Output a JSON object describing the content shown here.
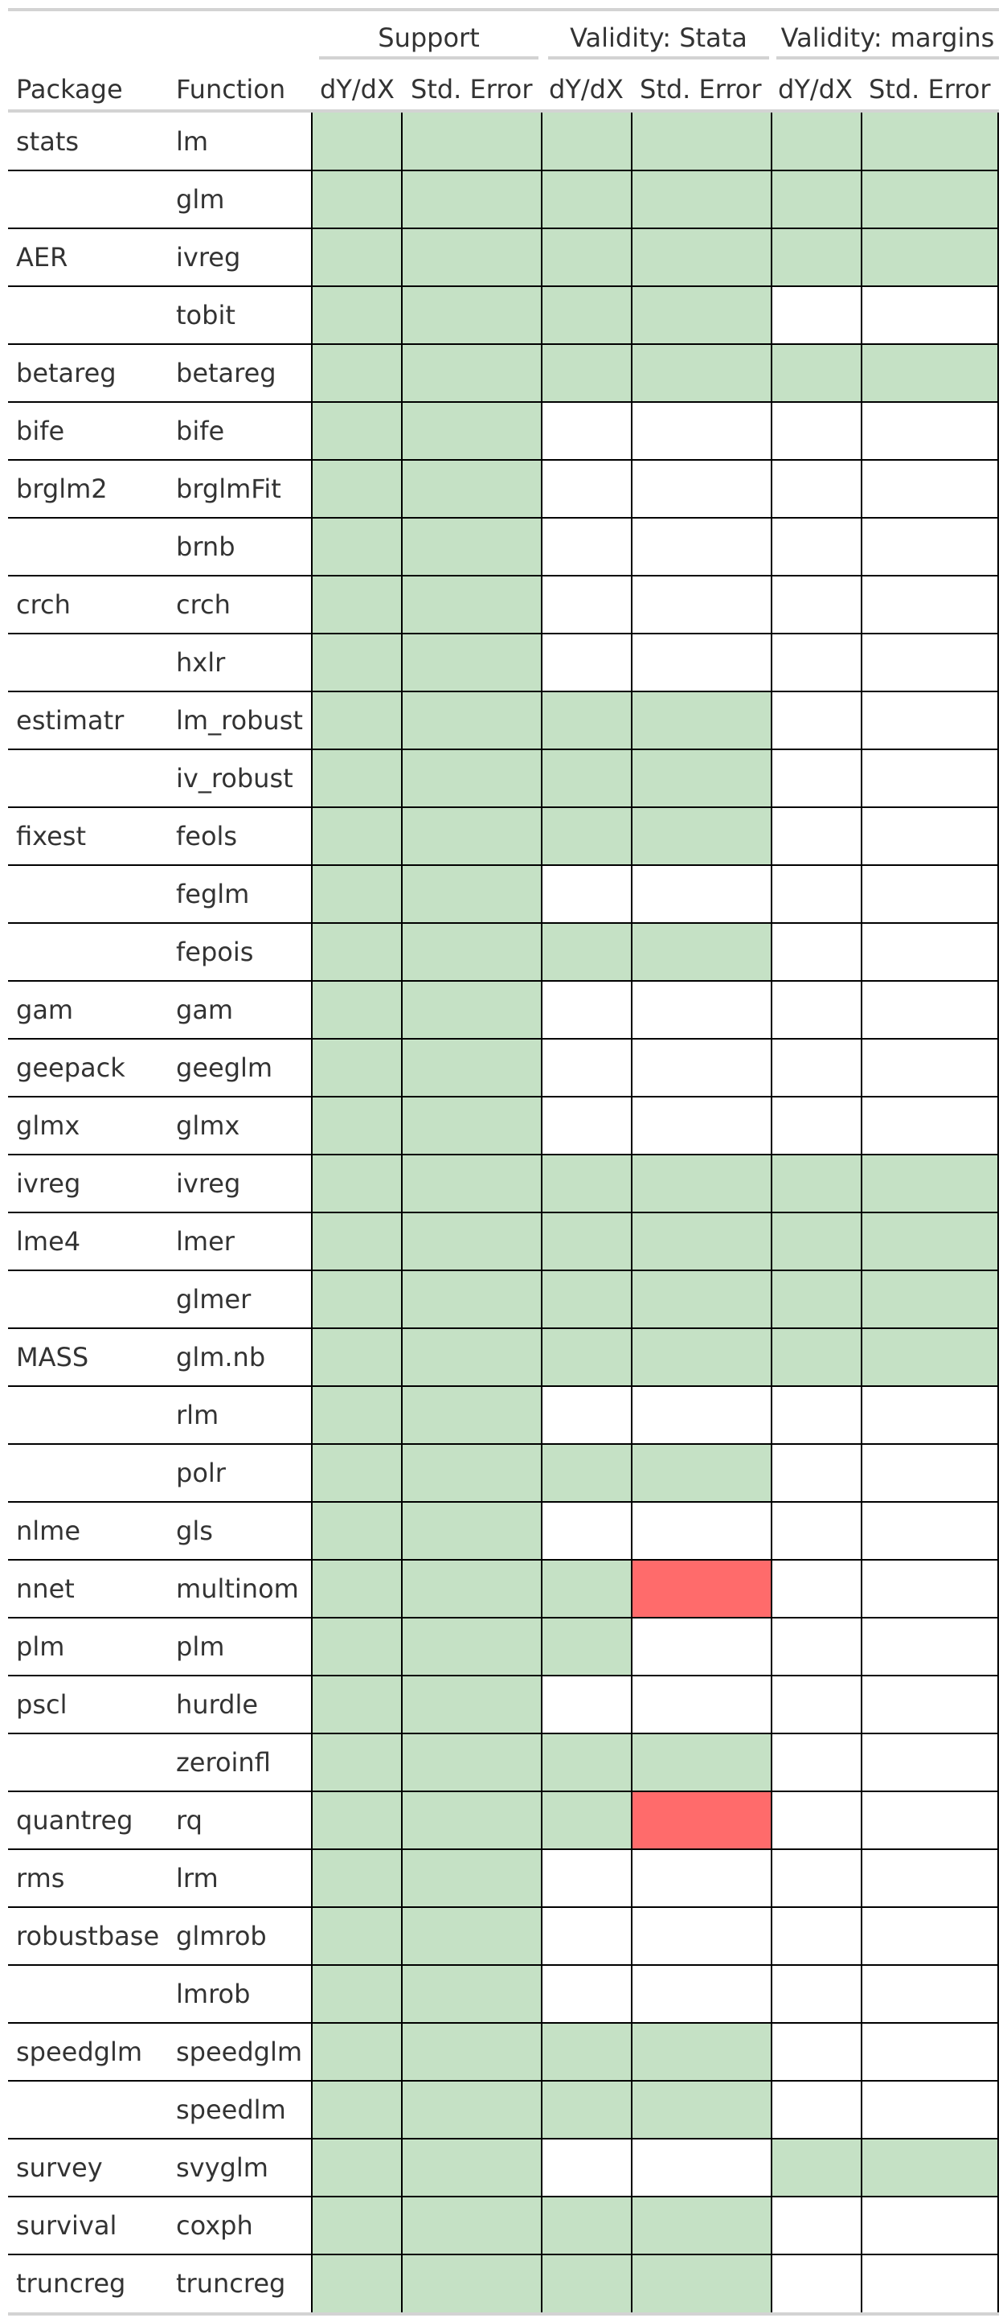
{
  "groups": [
    "Support",
    "Validity: Stata",
    "Validity: margins"
  ],
  "headers": [
    "Package",
    "Function",
    "dY/dX",
    "Std. Error",
    "dY/dX",
    "Std. Error",
    "dY/dX",
    "Std. Error"
  ],
  "colors": {
    "supported": "#c5e1c5",
    "failed": "#ff6b6b",
    "none": "#ffffff"
  },
  "rows": [
    {
      "package": "stats",
      "function": "lm",
      "cells": [
        "ok",
        "ok",
        "ok",
        "ok",
        "ok",
        "ok"
      ]
    },
    {
      "package": "",
      "function": "glm",
      "cells": [
        "ok",
        "ok",
        "ok",
        "ok",
        "ok",
        "ok"
      ]
    },
    {
      "package": "AER",
      "function": "ivreg",
      "cells": [
        "ok",
        "ok",
        "ok",
        "ok",
        "ok",
        "ok"
      ]
    },
    {
      "package": "",
      "function": "tobit",
      "cells": [
        "ok",
        "ok",
        "ok",
        "ok",
        "",
        ""
      ]
    },
    {
      "package": "betareg",
      "function": "betareg",
      "cells": [
        "ok",
        "ok",
        "ok",
        "ok",
        "ok",
        "ok"
      ]
    },
    {
      "package": "bife",
      "function": "bife",
      "cells": [
        "ok",
        "ok",
        "",
        "",
        "",
        ""
      ]
    },
    {
      "package": "brglm2",
      "function": "brglmFit",
      "cells": [
        "ok",
        "ok",
        "",
        "",
        "",
        ""
      ]
    },
    {
      "package": "",
      "function": "brnb",
      "cells": [
        "ok",
        "ok",
        "",
        "",
        "",
        ""
      ]
    },
    {
      "package": "crch",
      "function": "crch",
      "cells": [
        "ok",
        "ok",
        "",
        "",
        "",
        ""
      ]
    },
    {
      "package": "",
      "function": "hxlr",
      "cells": [
        "ok",
        "ok",
        "",
        "",
        "",
        ""
      ]
    },
    {
      "package": "estimatr",
      "function": "lm_robust",
      "cells": [
        "ok",
        "ok",
        "ok",
        "ok",
        "",
        ""
      ]
    },
    {
      "package": "",
      "function": "iv_robust",
      "cells": [
        "ok",
        "ok",
        "ok",
        "ok",
        "",
        ""
      ]
    },
    {
      "package": "fixest",
      "function": "feols",
      "cells": [
        "ok",
        "ok",
        "ok",
        "ok",
        "",
        ""
      ]
    },
    {
      "package": "",
      "function": "feglm",
      "cells": [
        "ok",
        "ok",
        "",
        "",
        "",
        ""
      ]
    },
    {
      "package": "",
      "function": "fepois",
      "cells": [
        "ok",
        "ok",
        "ok",
        "ok",
        "",
        ""
      ]
    },
    {
      "package": "gam",
      "function": "gam",
      "cells": [
        "ok",
        "ok",
        "",
        "",
        "",
        ""
      ]
    },
    {
      "package": "geepack",
      "function": "geeglm",
      "cells": [
        "ok",
        "ok",
        "",
        "",
        "",
        ""
      ]
    },
    {
      "package": "glmx",
      "function": "glmx",
      "cells": [
        "ok",
        "ok",
        "",
        "",
        "",
        ""
      ]
    },
    {
      "package": "ivreg",
      "function": "ivreg",
      "cells": [
        "ok",
        "ok",
        "ok",
        "ok",
        "ok",
        "ok"
      ]
    },
    {
      "package": "lme4",
      "function": "lmer",
      "cells": [
        "ok",
        "ok",
        "ok",
        "ok",
        "ok",
        "ok"
      ]
    },
    {
      "package": "",
      "function": "glmer",
      "cells": [
        "ok",
        "ok",
        "ok",
        "ok",
        "ok",
        "ok"
      ]
    },
    {
      "package": "MASS",
      "function": "glm.nb",
      "cells": [
        "ok",
        "ok",
        "ok",
        "ok",
        "ok",
        "ok"
      ]
    },
    {
      "package": "",
      "function": "rlm",
      "cells": [
        "ok",
        "ok",
        "",
        "",
        "",
        ""
      ]
    },
    {
      "package": "",
      "function": "polr",
      "cells": [
        "ok",
        "ok",
        "ok",
        "ok",
        "",
        ""
      ]
    },
    {
      "package": "nlme",
      "function": "gls",
      "cells": [
        "ok",
        "ok",
        "",
        "",
        "",
        ""
      ]
    },
    {
      "package": "nnet",
      "function": "multinom",
      "cells": [
        "ok",
        "ok",
        "ok",
        "bad",
        "",
        ""
      ]
    },
    {
      "package": "plm",
      "function": "plm",
      "cells": [
        "ok",
        "ok",
        "ok",
        "",
        "",
        ""
      ]
    },
    {
      "package": "pscl",
      "function": "hurdle",
      "cells": [
        "ok",
        "ok",
        "",
        "",
        "",
        ""
      ]
    },
    {
      "package": "",
      "function": "zeroinfl",
      "cells": [
        "ok",
        "ok",
        "ok",
        "ok",
        "",
        ""
      ]
    },
    {
      "package": "quantreg",
      "function": "rq",
      "cells": [
        "ok",
        "ok",
        "ok",
        "bad",
        "",
        ""
      ]
    },
    {
      "package": "rms",
      "function": "lrm",
      "cells": [
        "ok",
        "ok",
        "",
        "",
        "",
        ""
      ]
    },
    {
      "package": "robustbase",
      "function": "glmrob",
      "cells": [
        "ok",
        "ok",
        "",
        "",
        "",
        ""
      ]
    },
    {
      "package": "",
      "function": "lmrob",
      "cells": [
        "ok",
        "ok",
        "",
        "",
        "",
        ""
      ]
    },
    {
      "package": "speedglm",
      "function": "speedglm",
      "cells": [
        "ok",
        "ok",
        "ok",
        "ok",
        "",
        ""
      ]
    },
    {
      "package": "",
      "function": "speedlm",
      "cells": [
        "ok",
        "ok",
        "ok",
        "ok",
        "",
        ""
      ]
    },
    {
      "package": "survey",
      "function": "svyglm",
      "cells": [
        "ok",
        "ok",
        "",
        "",
        "ok",
        "ok"
      ]
    },
    {
      "package": "survival",
      "function": "coxph",
      "cells": [
        "ok",
        "ok",
        "ok",
        "ok",
        "",
        ""
      ]
    },
    {
      "package": "truncreg",
      "function": "truncreg",
      "cells": [
        "ok",
        "ok",
        "ok",
        "ok",
        "",
        ""
      ]
    }
  ]
}
